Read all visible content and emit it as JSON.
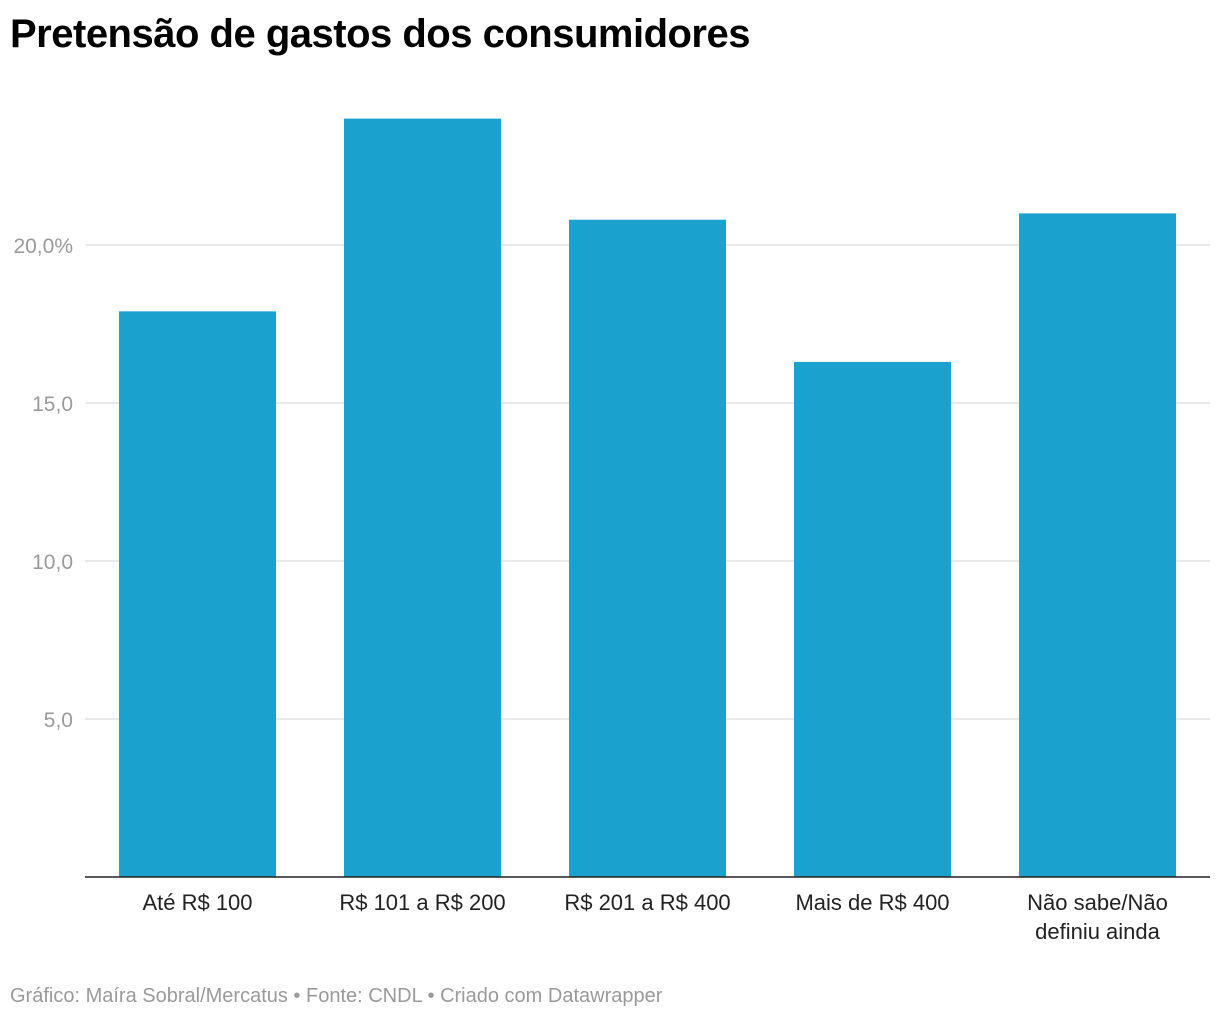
{
  "chart_data": {
    "type": "bar",
    "title": "Pretensão de gastos dos consumidores",
    "categories": [
      "Até R$ 100",
      "R$ 101 a R$ 200",
      "R$ 201 a R$ 400",
      "Mais de R$ 400",
      "Não sabe/Não definiu ainda"
    ],
    "category_lines": [
      [
        "Até R$ 100"
      ],
      [
        "R$ 101 a R$ 200"
      ],
      [
        "R$ 201 a R$ 400"
      ],
      [
        "Mais de R$ 400"
      ],
      [
        "Não sabe/Não",
        "definiu ainda"
      ]
    ],
    "values": [
      17.9,
      24.0,
      20.8,
      16.3,
      21.0
    ],
    "yticks": [
      5,
      10,
      15,
      20
    ],
    "ytick_labels": [
      "5,0",
      "10,0",
      "15,0",
      "20,0%"
    ],
    "ylim": [
      0,
      25
    ],
    "xlabel": "",
    "ylabel": "",
    "grid": true,
    "color": "#1aa1ce"
  },
  "footer": "Gráfico: Maíra Sobral/Mercatus • Fonte: CNDL • Criado com Datawrapper"
}
